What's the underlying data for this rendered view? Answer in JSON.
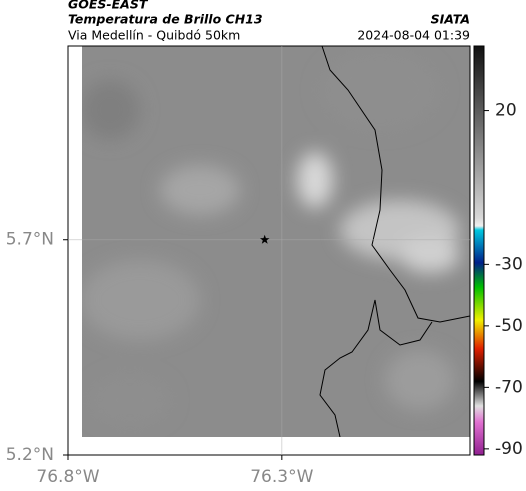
{
  "header": {
    "source": "GOES-EAST",
    "title": "Temperatura de Brillo CH13",
    "subtitle": "Via Medellín - Quibdó 50km",
    "org": "SIATA",
    "datetime": "2024-08-04 01:39"
  },
  "map": {
    "xlim": [
      -76.8,
      -75.86
    ],
    "ylim": [
      5.2,
      6.15
    ],
    "xticks": [
      {
        "value": -76.8,
        "label": "76.8°W"
      },
      {
        "value": -76.3,
        "label": "76.3°W"
      }
    ],
    "yticks": [
      {
        "value": 5.2,
        "label": "5.2°N"
      },
      {
        "value": 5.7,
        "label": "5.7°N"
      }
    ],
    "marker": {
      "lon": -76.34,
      "lat": 5.7
    }
  },
  "colorbar": {
    "lim": [
      -92,
      41
    ],
    "ticks": [
      20,
      -30,
      -50,
      -70,
      -90
    ]
  }
}
